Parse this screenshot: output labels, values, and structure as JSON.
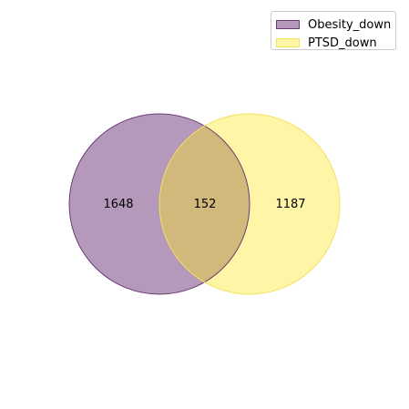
{
  "chart_data": {
    "type": "venn",
    "sets": [
      {
        "name": "Obesity_down",
        "only_count": "1648",
        "fill": "#b599bb",
        "edge": "#6a3d73"
      },
      {
        "name": "PTSD_down",
        "only_count": "1187",
        "fill": "#fff5a6",
        "edge": "#f2e25e"
      }
    ],
    "intersection": {
      "count": "152",
      "fill": "#d1b97c"
    },
    "legend_placement": "top-right"
  }
}
